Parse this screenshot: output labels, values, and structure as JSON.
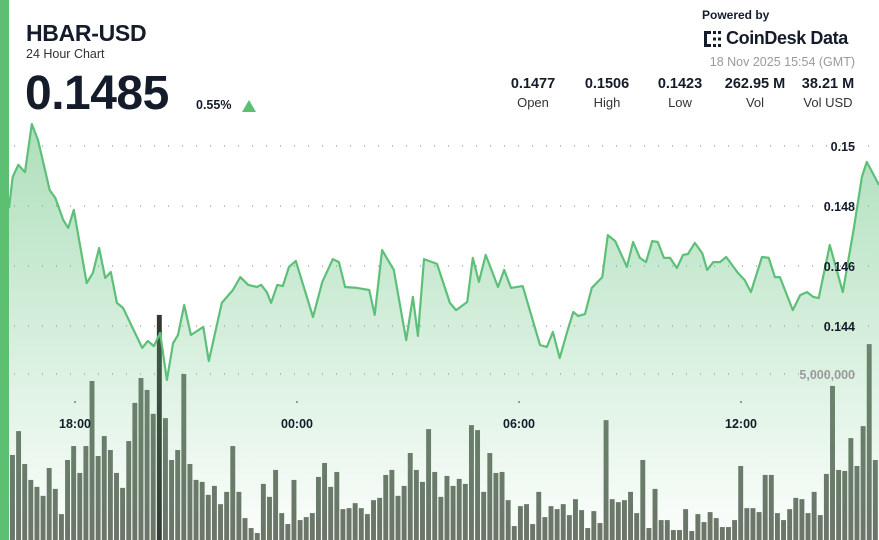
{
  "header": {
    "title": "HBAR-USD",
    "subtitle": "24 Hour Chart",
    "price": "0.1485",
    "change": "0.55%",
    "change_direction": "up",
    "powered_by": "Powered by",
    "brand": "CoinDesk Data",
    "timestamp": "18 Nov 2025 15:54 (GMT)"
  },
  "stats": [
    {
      "value": "0.1477",
      "label": "Open"
    },
    {
      "value": "0.1506",
      "label": "High"
    },
    {
      "value": "0.1423",
      "label": "Low"
    },
    {
      "value": "262.95 M",
      "label": "Vol"
    },
    {
      "value": "38.21 M",
      "label": "Vol USD"
    }
  ],
  "colors": {
    "accent": "#5cbf72",
    "line": "#5dbf78",
    "volume_bar": "#6b7468",
    "highlight_bar": "#333833"
  },
  "chart_data": {
    "type": "line",
    "title": "",
    "grid": true,
    "price_ticks": [
      "0.15",
      "0.148",
      "0.146",
      "0.144"
    ],
    "price_tick_values": [
      0.15,
      0.148,
      0.146,
      0.144
    ],
    "volume_ticks": [
      "5,000,000"
    ],
    "volume_tick_values": [
      5000000
    ],
    "x_ticks": [
      "18:00",
      "00:00",
      "06:00",
      "12:00"
    ],
    "price_series": [
      [
        "16:15",
        0.14793
      ],
      [
        "16:19",
        0.14897
      ],
      [
        "16:28",
        0.14937
      ],
      [
        "16:39",
        0.14913
      ],
      [
        "16:50",
        0.15073
      ],
      [
        "17:00",
        0.1502
      ],
      [
        "17:19",
        0.14853
      ],
      [
        "17:28",
        0.14827
      ],
      [
        "17:41",
        0.14753
      ],
      [
        "17:49",
        0.14727
      ],
      [
        "17:58",
        0.14787
      ],
      [
        "18:19",
        0.14543
      ],
      [
        "18:29",
        0.14577
      ],
      [
        "18:39",
        0.1466
      ],
      [
        "18:49",
        0.1456
      ],
      [
        "18:58",
        0.1458
      ],
      [
        "19:08",
        0.14477
      ],
      [
        "19:18",
        0.1446
      ],
      [
        "19:49",
        0.14327
      ],
      [
        "19:58",
        0.1435
      ],
      [
        "20:08",
        0.14333
      ],
      [
        "20:18",
        0.14377
      ],
      [
        "20:29",
        0.1422
      ],
      [
        "20:39",
        0.14343
      ],
      [
        "20:47",
        0.1437
      ],
      [
        "20:57",
        0.1447
      ],
      [
        "21:08",
        0.1437
      ],
      [
        "21:28",
        0.14397
      ],
      [
        "21:37",
        0.14283
      ],
      [
        "21:58",
        0.14477
      ],
      [
        "22:16",
        0.1452
      ],
      [
        "22:28",
        0.14563
      ],
      [
        "22:41",
        0.14537
      ],
      [
        "22:55",
        0.1453
      ],
      [
        "23:02",
        0.14537
      ],
      [
        "23:11",
        0.14513
      ],
      [
        "23:18",
        0.14477
      ],
      [
        "23:28",
        0.14537
      ],
      [
        "23:37",
        0.14533
      ],
      [
        "23:47",
        0.14597
      ],
      [
        "23:58",
        0.14617
      ],
      [
        "00:26",
        0.1443
      ],
      [
        "00:41",
        0.14547
      ],
      [
        "00:58",
        0.14623
      ],
      [
        "01:08",
        0.14613
      ],
      [
        "01:18",
        0.1453
      ],
      [
        "01:37",
        0.14527
      ],
      [
        "01:57",
        0.1452
      ],
      [
        "02:06",
        0.14437
      ],
      [
        "02:18",
        0.14653
      ],
      [
        "02:37",
        0.14587
      ],
      [
        "02:57",
        0.14353
      ],
      [
        "03:08",
        0.14497
      ],
      [
        "03:16",
        0.14367
      ],
      [
        "03:26",
        0.14623
      ],
      [
        "03:47",
        0.14607
      ],
      [
        "04:08",
        0.14477
      ],
      [
        "04:18",
        0.14453
      ],
      [
        "04:36",
        0.1448
      ],
      [
        "04:45",
        0.14627
      ],
      [
        "04:55",
        0.14547
      ],
      [
        "05:06",
        0.14637
      ],
      [
        "05:26",
        0.1453
      ],
      [
        "05:36",
        0.14587
      ],
      [
        "05:47",
        0.14527
      ],
      [
        "06:06",
        0.14533
      ],
      [
        "06:34",
        0.14337
      ],
      [
        "06:45",
        0.1433
      ],
      [
        "06:55",
        0.1438
      ],
      [
        "07:06",
        0.14293
      ],
      [
        "07:18",
        0.1438
      ],
      [
        "07:28",
        0.14447
      ],
      [
        "07:36",
        0.14433
      ],
      [
        "07:47",
        0.1444
      ],
      [
        "07:58",
        0.14527
      ],
      [
        "08:15",
        0.14563
      ],
      [
        "08:24",
        0.14703
      ],
      [
        "08:36",
        0.14683
      ],
      [
        "08:55",
        0.14597
      ],
      [
        "09:05",
        0.1468
      ],
      [
        "09:16",
        0.14627
      ],
      [
        "09:26",
        0.14613
      ],
      [
        "09:36",
        0.14683
      ],
      [
        "09:45",
        0.1468
      ],
      [
        "09:55",
        0.14627
      ],
      [
        "10:05",
        0.14627
      ],
      [
        "10:16",
        0.14593
      ],
      [
        "10:26",
        0.14637
      ],
      [
        "10:34",
        0.1464
      ],
      [
        "10:45",
        0.14677
      ],
      [
        "10:57",
        0.14643
      ],
      [
        "11:05",
        0.14587
      ],
      [
        "11:15",
        0.14613
      ],
      [
        "11:26",
        0.14613
      ],
      [
        "11:36",
        0.1463
      ],
      [
        "11:55",
        0.14577
      ],
      [
        "12:06",
        0.14553
      ],
      [
        "12:16",
        0.14513
      ],
      [
        "12:34",
        0.1463
      ],
      [
        "12:45",
        0.14627
      ],
      [
        "12:55",
        0.14563
      ],
      [
        "13:03",
        0.14563
      ],
      [
        "13:24",
        0.14453
      ],
      [
        "13:36",
        0.14503
      ],
      [
        "13:47",
        0.14513
      ],
      [
        "13:57",
        0.14497
      ],
      [
        "14:06",
        0.14493
      ],
      [
        "14:24",
        0.1467
      ],
      [
        "14:45",
        0.14513
      ],
      [
        "15:03",
        0.14727
      ],
      [
        "15:16",
        0.14897
      ],
      [
        "15:24",
        0.14947
      ],
      [
        "15:44",
        0.1487
      ]
    ],
    "volume_millions": [
      2.56,
      3.28,
      2.29,
      1.81,
      1.6,
      1.33,
      2.17,
      1.54,
      0.78,
      2.41,
      2.83,
      2.02,
      2.83,
      4.79,
      2.53,
      3.13,
      2.71,
      2.02,
      1.57,
      2.98,
      4.13,
      4.88,
      4.52,
      3.8,
      6.78,
      3.67,
      2.41,
      2.71,
      5.0,
      2.29,
      1.81,
      1.75,
      1.36,
      1.63,
      1.08,
      1.45,
      2.83,
      1.45,
      0.66,
      0.36,
      0.21,
      1.69,
      1.3,
      2.11,
      0.81,
      0.48,
      1.81,
      0.6,
      0.69,
      0.81,
      1.9,
      2.32,
      1.6,
      2.05,
      0.93,
      0.96,
      1.11,
      0.96,
      0.78,
      1.2,
      1.27,
      1.96,
      2.11,
      1.33,
      1.63,
      2.62,
      2.11,
      1.75,
      3.34,
      2.05,
      1.3,
      1.93,
      1.63,
      1.84,
      1.69,
      3.46,
      3.31,
      1.45,
      2.62,
      2.02,
      2.05,
      1.2,
      0.42,
      1.02,
      1.08,
      0.48,
      1.45,
      0.69,
      1.02,
      0.93,
      1.08,
      0.75,
      1.23,
      0.9,
      0.36,
      0.87,
      0.51,
      3.61,
      1.23,
      1.14,
      1.2,
      1.45,
      0.81,
      2.41,
      0.36,
      1.54,
      0.6,
      0.6,
      0.3,
      0.3,
      0.93,
      0.27,
      0.78,
      0.54,
      0.84,
      0.66,
      0.39,
      0.39,
      0.6,
      2.23,
      0.96,
      0.96,
      0.84,
      1.96,
      1.96,
      0.81,
      0.6,
      0.93,
      1.27,
      1.23,
      0.81,
      1.45,
      0.75,
      1.99,
      4.64,
      2.11,
      2.08,
      3.07,
      2.23,
      3.43,
      5.9,
      2.41
    ],
    "highlighted_bar_index": 24
  }
}
